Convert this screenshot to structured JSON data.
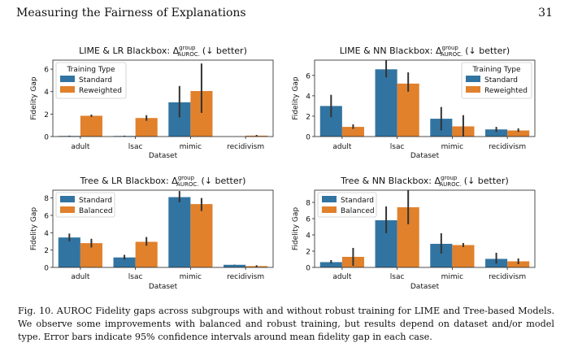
{
  "header": {
    "running_title": "Measuring the Fairness of Explanations",
    "page_number": "31"
  },
  "caption": {
    "label": "Fig. 10.",
    "text": "AUROC Fidelity gaps across subgroups with and without robust training for LIME and Tree-based Models. We observe some improvements with balanced and robust training, but results depend on dataset and/or model type. Error bars indicate 95% confidence intervals around mean fidelity gap in each case."
  },
  "colors": {
    "series_1": "#3274a1",
    "series_2": "#e1812c",
    "error_bar": "#333333"
  },
  "chart_data": [
    {
      "type": "bar",
      "title": "LIME & LR Blackbox: Δ",
      "title_sup": "group",
      "title_sub": "AUROC.",
      "title_suffix": "(↓ better)",
      "xlabel": "Dataset",
      "ylabel": "Fidelity Gap",
      "ylim": [
        0,
        6.8
      ],
      "yticks": [
        0,
        2,
        4,
        6
      ],
      "legend_title": "Training Type",
      "legend_position": "top-left",
      "categories": [
        "adult",
        "lsac",
        "mimic",
        "recidivism"
      ],
      "series": [
        {
          "name": "Standard",
          "values": [
            0.05,
            0.05,
            3.05,
            0.0
          ],
          "ci_low": [
            0.02,
            0.02,
            1.7,
            0.0
          ],
          "ci_high": [
            0.08,
            0.08,
            4.5,
            0.0
          ]
        },
        {
          "name": "Reweighted",
          "values": [
            1.85,
            1.65,
            4.05,
            0.08
          ],
          "ci_low": [
            1.75,
            1.4,
            2.1,
            0.02
          ],
          "ci_high": [
            1.95,
            1.9,
            6.5,
            0.14
          ]
        }
      ]
    },
    {
      "type": "bar",
      "title": "LIME & NN Blackbox: Δ",
      "title_sup": "group",
      "title_sub": "AUROC.",
      "title_suffix": "(↓ better)",
      "xlabel": "Dataset",
      "ylabel": "Fidelity Gap",
      "ylim": [
        0,
        7.5
      ],
      "yticks": [
        0,
        2,
        4,
        6
      ],
      "legend_title": "Training Type",
      "legend_position": "top-right",
      "categories": [
        "adult",
        "lsac",
        "mimic",
        "recidivism"
      ],
      "series": [
        {
          "name": "Standard",
          "values": [
            3.0,
            6.6,
            1.75,
            0.7
          ],
          "ci_low": [
            1.9,
            5.8,
            0.6,
            0.45
          ],
          "ci_high": [
            4.1,
            7.5,
            2.9,
            0.95
          ]
        },
        {
          "name": "Reweighted",
          "values": [
            0.95,
            5.2,
            1.0,
            0.6
          ],
          "ci_low": [
            0.75,
            4.4,
            0.0,
            0.45
          ],
          "ci_high": [
            1.2,
            6.3,
            2.1,
            0.8
          ]
        }
      ]
    },
    {
      "type": "bar",
      "title": "Tree & LR Blackbox: Δ",
      "title_sup": "group",
      "title_sub": "AUROC.",
      "title_suffix": "(↓ better)",
      "xlabel": "Dataset",
      "ylabel": "Fidelity Gap",
      "ylim": [
        0,
        8.9
      ],
      "yticks": [
        0,
        2,
        4,
        6,
        8
      ],
      "legend_title": "",
      "legend_position": "top-left",
      "categories": [
        "adult",
        "lsac",
        "mimic",
        "recidivism"
      ],
      "series": [
        {
          "name": "Standard",
          "values": [
            3.45,
            1.15,
            8.1,
            0.3
          ],
          "ci_low": [
            3.0,
            0.9,
            7.5,
            0.28
          ],
          "ci_high": [
            3.9,
            1.45,
            8.8,
            0.32
          ]
        },
        {
          "name": "Balanced",
          "values": [
            2.8,
            2.95,
            7.3,
            0.15
          ],
          "ci_low": [
            2.3,
            2.5,
            6.5,
            0.05
          ],
          "ci_high": [
            3.3,
            3.5,
            8.0,
            0.25
          ]
        }
      ]
    },
    {
      "type": "bar",
      "title": "Tree & NN Blackbox: Δ",
      "title_sup": "group",
      "title_sub": "AUROC.",
      "title_suffix": "(↓ better)",
      "xlabel": "Dataset",
      "ylabel": "Fidelity Gap",
      "ylim": [
        0,
        9.5
      ],
      "yticks": [
        0,
        2,
        4,
        6,
        8
      ],
      "legend_title": "",
      "legend_position": "top-left",
      "categories": [
        "adult",
        "lsac",
        "mimic",
        "recidivism"
      ],
      "series": [
        {
          "name": "Standard",
          "values": [
            0.65,
            5.8,
            2.9,
            1.05
          ],
          "ci_low": [
            0.5,
            4.2,
            1.7,
            0.45
          ],
          "ci_high": [
            0.9,
            7.5,
            4.2,
            1.8
          ]
        },
        {
          "name": "Balanced",
          "values": [
            1.3,
            7.4,
            2.75,
            0.75
          ],
          "ci_low": [
            0.2,
            5.3,
            2.5,
            0.4
          ],
          "ci_high": [
            2.4,
            9.5,
            3.0,
            1.1
          ]
        }
      ]
    }
  ]
}
